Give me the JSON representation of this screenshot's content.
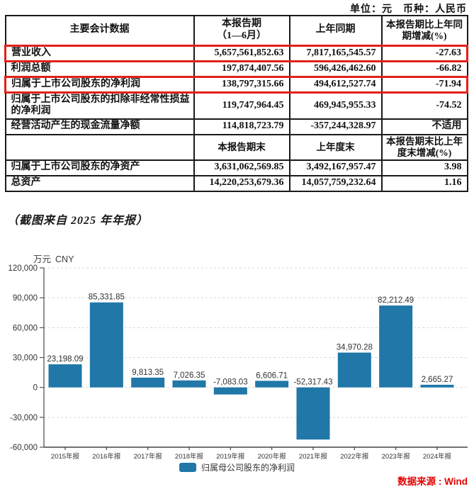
{
  "page": {
    "unit_label": "单位：元　币种：人民币",
    "caption": "（截图来自 2025 年年报）",
    "source_note": "数据来源 : Wind"
  },
  "table": {
    "header_row": {
      "col1": "主要会计数据",
      "col2_line1": "本报告期",
      "col2_line2": "（1—6月）",
      "col3": "上年同期",
      "col4": "本报告期比上年同期增减(%)"
    },
    "rows": [
      {
        "label": "营业收入",
        "current": "5,657,561,852.63",
        "prior": "7,817,165,545.57",
        "change": "-27.63"
      },
      {
        "label": "利润总额",
        "current": "197,874,407.56",
        "prior": "596,426,462.60",
        "change": "-66.82"
      },
      {
        "label": "归属于上市公司股东的净利润",
        "current": "138,797,315.66",
        "prior": "494,612,527.74",
        "change": "-71.94"
      },
      {
        "label": "归属于上市公司股东的扣除非经常性损益的净利润",
        "current": "119,747,964.45",
        "prior": "469,945,955.33",
        "change": "-74.52"
      },
      {
        "label": "经营活动产生的现金流量净额",
        "current": "114,818,723.79",
        "prior": "-357,244,328.97",
        "change": "不适用"
      }
    ],
    "mid_header": {
      "col2": "本报告期末",
      "col3": "上年度末",
      "col4": "本报告期末比上年度末增减(%)"
    },
    "rows_end": [
      {
        "label": "归属于上市公司股东的净资产",
        "current": "3,631,062,569.85",
        "prior": "3,492,167,957.47",
        "change": "3.98"
      },
      {
        "label": "总资产",
        "current": "14,220,253,679.36",
        "prior": "14,057,759,232.64",
        "change": "1.16"
      }
    ]
  },
  "chart_data": {
    "type": "bar",
    "title": "",
    "unit_label": "万元",
    "currency_label": "CNY",
    "categories": [
      "2015年报",
      "2016年报",
      "2017年报",
      "2018年报",
      "2019年报",
      "2020年报",
      "2021年报",
      "2022年报",
      "2023年报",
      "2024年报"
    ],
    "values": [
      23198.09,
      85331.85,
      9813.35,
      7026.35,
      -7083.03,
      6606.71,
      -52317.43,
      34970.28,
      82212.49,
      2665.27
    ],
    "value_labels": [
      "23,198.09",
      "85,331.85",
      "9,813.35",
      "7,026.35",
      "-7,083.03",
      "6,606.71",
      "-52,317.43",
      "34,970.28",
      "82,212.49",
      "2,665.27"
    ],
    "legend_label": "归属母公司股东的净利润",
    "ylim": [
      -60000,
      120000
    ],
    "ytick_values": [
      120000,
      90000,
      60000,
      30000,
      0,
      -30000,
      -60000
    ],
    "ytick_labels": [
      "120,000",
      "90,000",
      "60,000",
      "30,000",
      "0",
      "-30,000",
      "-60,000"
    ],
    "bar_color": "#2077a8",
    "grid": true,
    "legend_position": "bottom"
  }
}
